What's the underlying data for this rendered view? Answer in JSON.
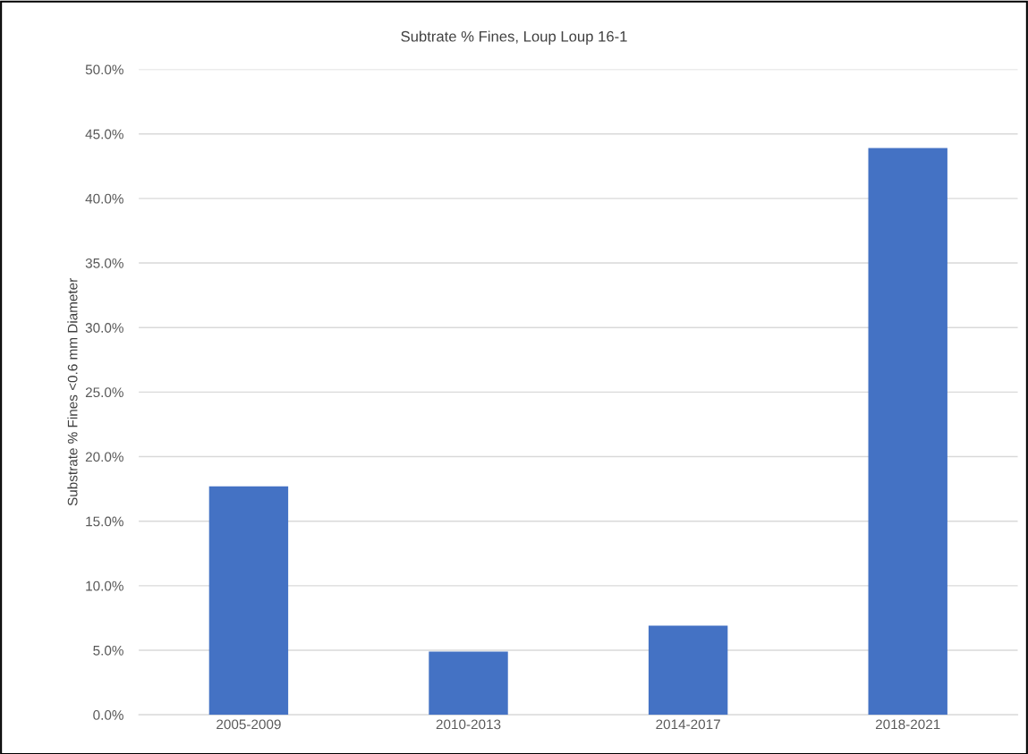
{
  "chart_data": {
    "type": "bar",
    "title": "Subtrate % Fines, Loup Loup 16-1",
    "ylabel": "Substrate % Fines <0.6 mm Diameter",
    "categories": [
      "2005-2009",
      "2010-2013",
      "2014-2017",
      "2018-2021"
    ],
    "values": [
      17.7,
      4.9,
      6.9,
      43.9
    ],
    "color": "#4472c4",
    "ylim": [
      0,
      50
    ],
    "yticks": [
      {
        "value": 0,
        "label": "0.0%"
      },
      {
        "value": 5,
        "label": "5.0%"
      },
      {
        "value": 10,
        "label": "10.0%"
      },
      {
        "value": 15,
        "label": "15.0%"
      },
      {
        "value": 20,
        "label": "20.0%"
      },
      {
        "value": 25,
        "label": "25.0%"
      },
      {
        "value": 30,
        "label": "30.0%"
      },
      {
        "value": 35,
        "label": "35.0%"
      },
      {
        "value": 40,
        "label": "40.0%"
      },
      {
        "value": 45,
        "label": "45.0%"
      },
      {
        "value": 50,
        "label": "50.0%"
      }
    ],
    "grid": "y",
    "legend": false
  }
}
